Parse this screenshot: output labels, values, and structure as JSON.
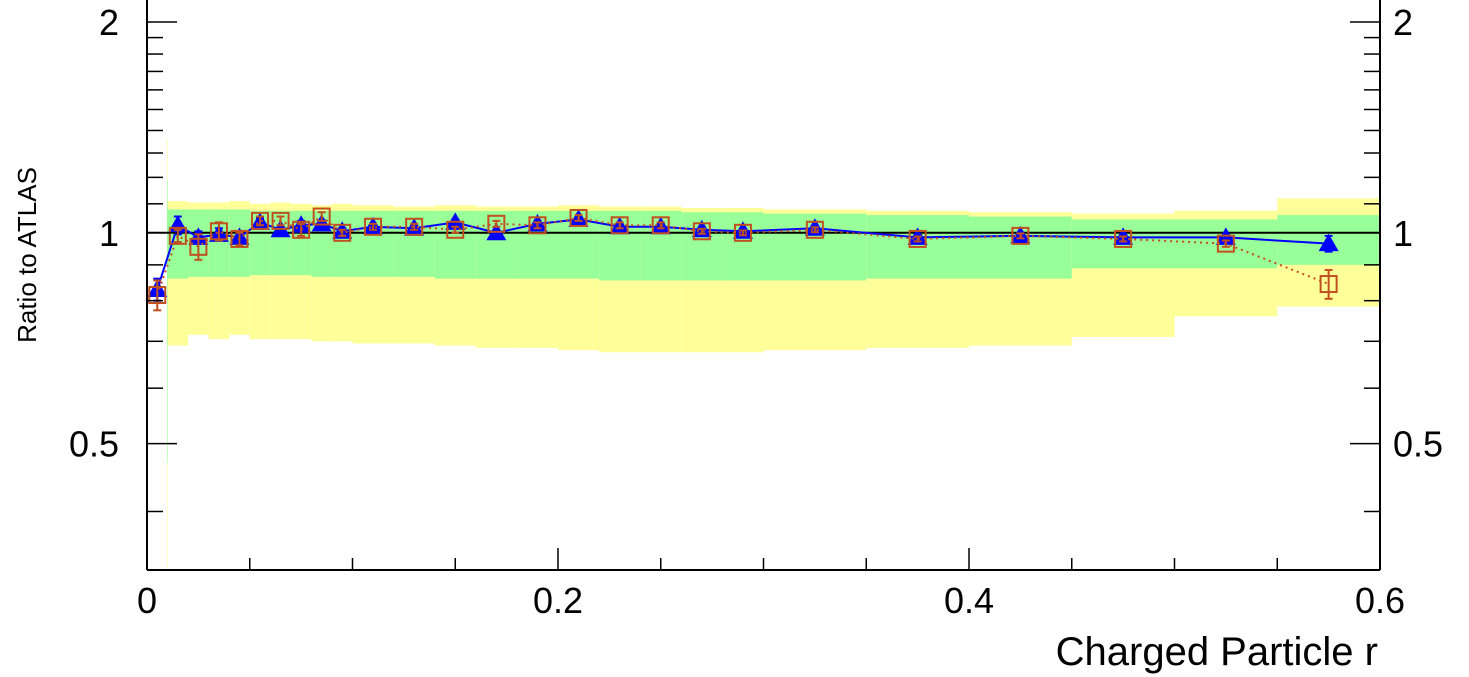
{
  "chart_data": {
    "type": "line",
    "title": "",
    "xlabel": "Charged Particle r",
    "ylabel": "Ratio to ATLAS",
    "xlim": [
      0,
      0.6
    ],
    "ylim": [
      0.33,
      2.15
    ],
    "y_scale": "log",
    "x_ticks": [
      0,
      0.2,
      0.4,
      0.6
    ],
    "x_tick_labels": [
      "0",
      "0.2",
      "0.4",
      "0.6"
    ],
    "y_ticks": [
      0.5,
      1,
      2
    ],
    "y_tick_labels": [
      "0.5",
      "1",
      "2"
    ],
    "reference_line": 1,
    "grid": false,
    "legend": "none",
    "colors": {
      "band_outer": "#ffff99",
      "band_inner": "#99ff99",
      "series_a": "#0000ff",
      "series_b": "#c0501f"
    },
    "bands": [
      {
        "x0": 0.0,
        "x1": 0.01,
        "inner": [
          0.47,
          1.19
        ],
        "outer": [
          0.3,
          1.36
        ]
      },
      {
        "x0": 0.01,
        "x1": 0.02,
        "inner": [
          0.86,
          1.08
        ],
        "outer": [
          0.69,
          1.11
        ]
      },
      {
        "x0": 0.02,
        "x1": 0.03,
        "inner": [
          0.865,
          1.08
        ],
        "outer": [
          0.715,
          1.105
        ]
      },
      {
        "x0": 0.03,
        "x1": 0.04,
        "inner": [
          0.865,
          1.08
        ],
        "outer": [
          0.705,
          1.105
        ]
      },
      {
        "x0": 0.04,
        "x1": 0.05,
        "inner": [
          0.865,
          1.08
        ],
        "outer": [
          0.715,
          1.11
        ]
      },
      {
        "x0": 0.05,
        "x1": 0.06,
        "inner": [
          0.87,
          1.075
        ],
        "outer": [
          0.705,
          1.1
        ]
      },
      {
        "x0": 0.06,
        "x1": 0.07,
        "inner": [
          0.87,
          1.075
        ],
        "outer": [
          0.705,
          1.105
        ]
      },
      {
        "x0": 0.07,
        "x1": 0.08,
        "inner": [
          0.87,
          1.075
        ],
        "outer": [
          0.705,
          1.1
        ]
      },
      {
        "x0": 0.08,
        "x1": 0.09,
        "inner": [
          0.865,
          1.075
        ],
        "outer": [
          0.7,
          1.095
        ]
      },
      {
        "x0": 0.09,
        "x1": 0.1,
        "inner": [
          0.865,
          1.075
        ],
        "outer": [
          0.7,
          1.1
        ]
      },
      {
        "x0": 0.1,
        "x1": 0.12,
        "inner": [
          0.865,
          1.075
        ],
        "outer": [
          0.695,
          1.095
        ]
      },
      {
        "x0": 0.12,
        "x1": 0.14,
        "inner": [
          0.865,
          1.075
        ],
        "outer": [
          0.695,
          1.09
        ]
      },
      {
        "x0": 0.14,
        "x1": 0.16,
        "inner": [
          0.86,
          1.075
        ],
        "outer": [
          0.69,
          1.095
        ]
      },
      {
        "x0": 0.16,
        "x1": 0.18,
        "inner": [
          0.86,
          1.075
        ],
        "outer": [
          0.685,
          1.09
        ]
      },
      {
        "x0": 0.18,
        "x1": 0.2,
        "inner": [
          0.86,
          1.075
        ],
        "outer": [
          0.685,
          1.09
        ]
      },
      {
        "x0": 0.2,
        "x1": 0.22,
        "inner": [
          0.86,
          1.075
        ],
        "outer": [
          0.68,
          1.095
        ]
      },
      {
        "x0": 0.22,
        "x1": 0.24,
        "inner": [
          0.855,
          1.075
        ],
        "outer": [
          0.675,
          1.09
        ]
      },
      {
        "x0": 0.24,
        "x1": 0.26,
        "inner": [
          0.855,
          1.075
        ],
        "outer": [
          0.675,
          1.09
        ]
      },
      {
        "x0": 0.26,
        "x1": 0.28,
        "inner": [
          0.855,
          1.07
        ],
        "outer": [
          0.675,
          1.085
        ]
      },
      {
        "x0": 0.28,
        "x1": 0.3,
        "inner": [
          0.855,
          1.07
        ],
        "outer": [
          0.675,
          1.085
        ]
      },
      {
        "x0": 0.3,
        "x1": 0.35,
        "inner": [
          0.855,
          1.065
        ],
        "outer": [
          0.68,
          1.08
        ]
      },
      {
        "x0": 0.35,
        "x1": 0.4,
        "inner": [
          0.86,
          1.06
        ],
        "outer": [
          0.685,
          1.075
        ]
      },
      {
        "x0": 0.4,
        "x1": 0.45,
        "inner": [
          0.86,
          1.055
        ],
        "outer": [
          0.69,
          1.07
        ]
      },
      {
        "x0": 0.45,
        "x1": 0.5,
        "inner": [
          0.89,
          1.045
        ],
        "outer": [
          0.71,
          1.065
        ]
      },
      {
        "x0": 0.5,
        "x1": 0.55,
        "inner": [
          0.89,
          1.045
        ],
        "outer": [
          0.76,
          1.075
        ]
      },
      {
        "x0": 0.55,
        "x1": 0.6,
        "inner": [
          0.9,
          1.06
        ],
        "outer": [
          0.785,
          1.12
        ]
      }
    ],
    "series": [
      {
        "marker": "triangle",
        "line": "solid",
        "color": "#0000ff",
        "x": [
          0.005,
          0.015,
          0.025,
          0.035,
          0.045,
          0.055,
          0.065,
          0.075,
          0.085,
          0.095,
          0.11,
          0.13,
          0.15,
          0.17,
          0.19,
          0.21,
          0.23,
          0.25,
          0.27,
          0.29,
          0.325,
          0.375,
          0.425,
          0.475,
          0.525,
          0.575
        ],
        "y": [
          0.83,
          1.025,
          0.985,
          0.995,
          0.985,
          1.035,
          1.01,
          1.025,
          1.03,
          1.005,
          1.02,
          1.015,
          1.035,
          1.0,
          1.03,
          1.045,
          1.02,
          1.02,
          1.01,
          1.005,
          1.015,
          0.985,
          0.99,
          0.985,
          0.985,
          0.965
        ],
        "err": [
          0.03,
          0.03,
          0.02,
          0.02,
          0.015,
          0.015,
          0.012,
          0.015,
          0.012,
          0.01,
          0.01,
          0.01,
          0.01,
          0.01,
          0.01,
          0.01,
          0.01,
          0.01,
          0.008,
          0.008,
          0.008,
          0.008,
          0.008,
          0.008,
          0.01,
          0.025
        ]
      },
      {
        "marker": "open-square",
        "line": "dotted",
        "color": "#c0501f",
        "x": [
          0.005,
          0.015,
          0.025,
          0.035,
          0.045,
          0.055,
          0.065,
          0.075,
          0.085,
          0.095,
          0.11,
          0.13,
          0.15,
          0.17,
          0.19,
          0.21,
          0.23,
          0.25,
          0.27,
          0.29,
          0.325,
          0.375,
          0.425,
          0.475,
          0.525,
          0.575
        ],
        "y": [
          0.815,
          0.99,
          0.955,
          1.005,
          0.98,
          1.04,
          1.04,
          1.01,
          1.055,
          1.0,
          1.02,
          1.02,
          1.01,
          1.03,
          1.025,
          1.05,
          1.025,
          1.025,
          1.005,
          1.0,
          1.01,
          0.98,
          0.99,
          0.98,
          0.965,
          0.845
        ],
        "err": [
          0.04,
          0.02,
          0.04,
          0.03,
          0.02,
          0.015,
          0.015,
          0.02,
          0.015,
          0.01,
          0.01,
          0.01,
          0.01,
          0.01,
          0.01,
          0.01,
          0.01,
          0.01,
          0.008,
          0.008,
          0.008,
          0.008,
          0.008,
          0.008,
          0.01,
          0.04
        ]
      }
    ]
  }
}
